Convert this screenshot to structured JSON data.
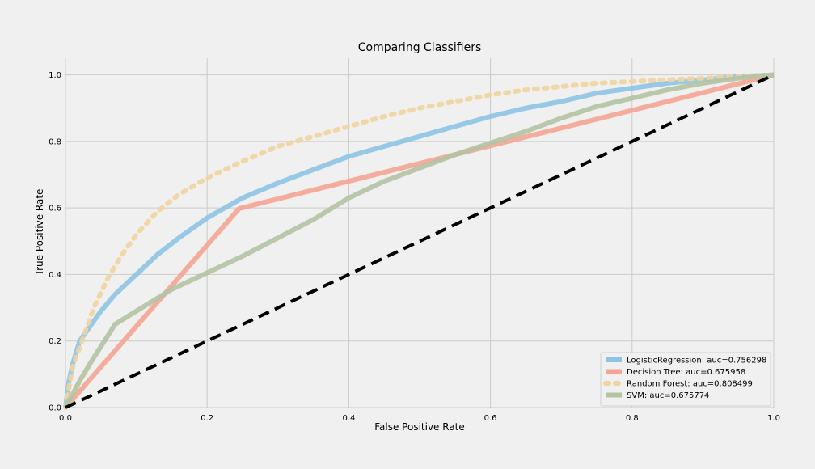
{
  "chart_data": {
    "type": "line",
    "title": "Comparing Classifiers",
    "xlabel": "False Positive Rate",
    "ylabel": "True Positive Rate",
    "xlim": [
      0,
      1
    ],
    "ylim": [
      0,
      1.05
    ],
    "x_ticks": [
      "0.0",
      "0.2",
      "0.4",
      "0.6",
      "0.8",
      "1.0"
    ],
    "y_ticks": [
      "0.0",
      "0.2",
      "0.4",
      "0.6",
      "0.8",
      "1.0"
    ],
    "grid": true,
    "legend_position": "bottom-right",
    "series": [
      {
        "name": "LogisticRegression: auc=0.756298",
        "color": "#8dc4e6",
        "style": "solid",
        "x": [
          0,
          0.005,
          0.01,
          0.02,
          0.03,
          0.05,
          0.07,
          0.1,
          0.13,
          0.16,
          0.2,
          0.25,
          0.3,
          0.35,
          0.4,
          0.45,
          0.5,
          0.55,
          0.6,
          0.65,
          0.7,
          0.75,
          0.8,
          0.85,
          0.9,
          0.95,
          1.0
        ],
        "y": [
          0,
          0.08,
          0.13,
          0.2,
          0.23,
          0.29,
          0.34,
          0.4,
          0.46,
          0.51,
          0.57,
          0.63,
          0.675,
          0.715,
          0.755,
          0.785,
          0.815,
          0.845,
          0.875,
          0.9,
          0.92,
          0.945,
          0.96,
          0.975,
          0.985,
          0.995,
          1.0
        ]
      },
      {
        "name": "Decision Tree: auc=0.675958",
        "color": "#f4a593",
        "style": "solid",
        "x": [
          0,
          0.245,
          1.0
        ],
        "y": [
          0,
          0.598,
          1.0
        ]
      },
      {
        "name": "Random Forest: auc=0.808499",
        "color": "#f0d4a0",
        "style": "dotted",
        "x": [
          0,
          0.01,
          0.02,
          0.04,
          0.06,
          0.08,
          0.1,
          0.13,
          0.16,
          0.2,
          0.25,
          0.3,
          0.35,
          0.4,
          0.45,
          0.5,
          0.55,
          0.6,
          0.65,
          0.7,
          0.75,
          0.8,
          0.85,
          0.9,
          0.95,
          1.0
        ],
        "y": [
          0,
          0.12,
          0.18,
          0.3,
          0.39,
          0.46,
          0.52,
          0.59,
          0.64,
          0.69,
          0.74,
          0.785,
          0.815,
          0.845,
          0.875,
          0.9,
          0.92,
          0.94,
          0.955,
          0.965,
          0.975,
          0.98,
          0.985,
          0.99,
          0.995,
          1.0
        ]
      },
      {
        "name": "SVM: auc=0.675774",
        "color": "#b3c3a3",
        "style": "solid",
        "x": [
          0,
          0.02,
          0.04,
          0.07,
          0.1,
          0.15,
          0.2,
          0.25,
          0.3,
          0.35,
          0.4,
          0.45,
          0.5,
          0.55,
          0.6,
          0.65,
          0.7,
          0.75,
          0.8,
          0.85,
          0.9,
          0.95,
          1.0
        ],
        "y": [
          0,
          0.08,
          0.15,
          0.25,
          0.29,
          0.355,
          0.405,
          0.455,
          0.51,
          0.565,
          0.63,
          0.68,
          0.72,
          0.76,
          0.795,
          0.83,
          0.87,
          0.905,
          0.93,
          0.955,
          0.975,
          0.99,
          1.0
        ]
      },
      {
        "name": "",
        "color": "#000000",
        "style": "dashed",
        "x": [
          0,
          1
        ],
        "y": [
          0,
          1
        ]
      }
    ]
  }
}
